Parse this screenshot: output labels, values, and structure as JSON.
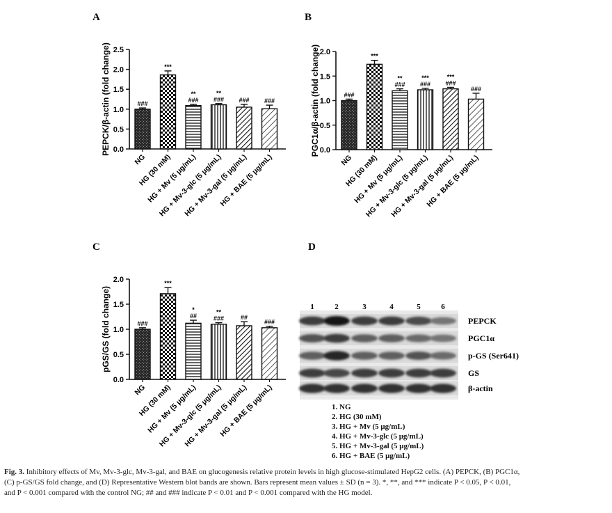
{
  "categories": [
    "NG",
    "HG (30 mM)",
    "HG + Mv (5 μg/mL)",
    "HG + Mv-3-glc (5 μg/mL)",
    "HG + Mv-3-gal (5 μg/mL)",
    "HG + BAE (5 μg/mL)"
  ],
  "chart_data": [
    {
      "panel": "A",
      "type": "bar",
      "ylabel": "PEPCK/β-actin (fold change)",
      "ylim": [
        0,
        2.5
      ],
      "yticks": [
        "0.0",
        "0.5",
        "1.0",
        "1.5",
        "2.0",
        "2.5"
      ],
      "values": [
        1.0,
        1.86,
        1.09,
        1.11,
        1.05,
        1.01
      ],
      "errors": [
        0.03,
        0.1,
        0.03,
        0.03,
        0.07,
        0.09
      ],
      "sig_top": [
        "",
        "***",
        "**",
        "**",
        "",
        ""
      ],
      "sig_bottom": [
        "###",
        "",
        "###",
        "###",
        "###",
        "###"
      ]
    },
    {
      "panel": "B",
      "type": "bar",
      "ylabel": "PGC1α/β-actin (fold change)",
      "ylim": [
        0,
        2.0
      ],
      "yticks": [
        "0.0",
        "0.5",
        "1.0",
        "1.5",
        "2.0"
      ],
      "values": [
        1.0,
        1.74,
        1.2,
        1.22,
        1.24,
        1.03
      ],
      "errors": [
        0.03,
        0.08,
        0.04,
        0.03,
        0.03,
        0.12
      ],
      "sig_top": [
        "",
        "***",
        "**",
        "***",
        "***",
        ""
      ],
      "sig_bottom": [
        "###",
        "",
        "###",
        "###",
        "###",
        "###"
      ]
    },
    {
      "panel": "C",
      "type": "bar",
      "ylabel": "pGS/GS (fold change)",
      "ylim": [
        0,
        2.0
      ],
      "yticks": [
        "0.0",
        "0.5",
        "1.0",
        "1.5",
        "2.0"
      ],
      "values": [
        1.0,
        1.71,
        1.12,
        1.1,
        1.07,
        1.03
      ],
      "errors": [
        0.03,
        0.12,
        0.06,
        0.03,
        0.08,
        0.03
      ],
      "sig_top": [
        "",
        "***",
        "*",
        "**",
        "",
        ""
      ],
      "sig_bottom": [
        "###",
        "",
        "##",
        "###",
        "##",
        "###"
      ]
    }
  ],
  "blot": {
    "panel": "D",
    "lanes": [
      "1",
      "2",
      "3",
      "4",
      "5",
      "6"
    ],
    "rows": [
      {
        "label": "PEPCK",
        "intensity": [
          0.85,
          1.0,
          0.85,
          0.85,
          0.78,
          0.6
        ]
      },
      {
        "label": "PGC1α",
        "intensity": [
          0.75,
          0.85,
          0.7,
          0.7,
          0.65,
          0.6
        ]
      },
      {
        "label": "p-GS (Ser641)",
        "intensity": [
          0.7,
          0.95,
          0.7,
          0.7,
          0.75,
          0.65
        ]
      },
      {
        "label": "GS",
        "intensity": [
          0.85,
          0.8,
          0.85,
          0.85,
          0.85,
          0.85
        ]
      },
      {
        "label": "β-actin",
        "intensity": [
          0.9,
          0.9,
          0.9,
          0.9,
          0.9,
          0.9
        ]
      }
    ],
    "legend": [
      "1. NG",
      "2. HG (30 mM)",
      "3. HG + Mv (5 μg/mL)",
      "4. HG + Mv-3-glc (5 μg/mL)",
      "5. HG + Mv-3-gal (5 μg/mL)",
      "6. HG + BAE (5 μg/mL)"
    ]
  },
  "caption": {
    "fig": "Fig. 3.",
    "line1": "Inhibitory effects of Mv, Mv-3-glc, Mv-3-gal, and BAE on glucogenesis relative protein levels in high glucose-stimulated HepG2 cells. (A) PEPCK, (B) PGC1α,",
    "line2": "(C) p-GS/GS fold change, and (D) Representative Western blot bands are shown. Bars represent mean values ± SD (n = 3). *, **, and *** indicate P < 0.05, P < 0.01,",
    "line3": "and P < 0.001 compared with the control NG; ## and ### indicate P < 0.01 and P < 0.001 compared with the HG model."
  }
}
